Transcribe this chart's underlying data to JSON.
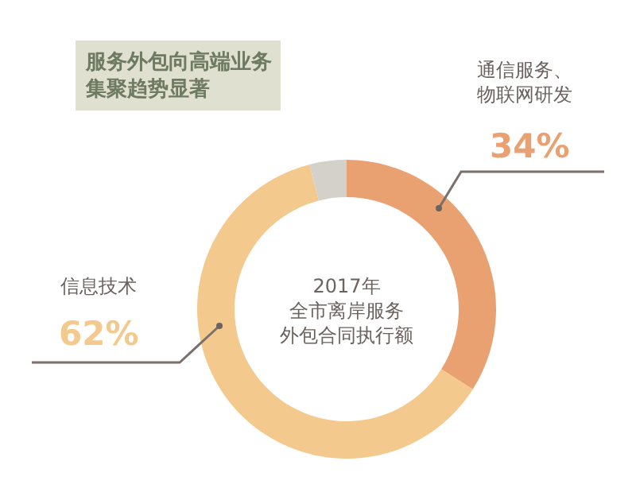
{
  "chart_data": {
    "type": "donut",
    "title": "服务外包向高端业务集聚趋势显著",
    "annotations": [
      "2017年全市离岸服务外包合同执行额"
    ],
    "categories": [
      "通信服务、物联网研发",
      "信息技术",
      null
    ],
    "values": [
      34,
      62,
      4
    ],
    "value_labels": [
      "34%",
      "62%",
      null
    ],
    "colors": [
      "#e9a172",
      "#f3c98d",
      "#d4d0ca"
    ]
  }
}
